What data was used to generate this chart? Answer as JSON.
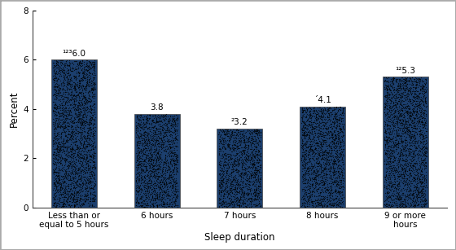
{
  "categories": [
    "Less than or\nequal to 5 hours",
    "6 hours",
    "7 hours",
    "8 hours",
    "9 or more\nhours"
  ],
  "values": [
    6.0,
    3.8,
    3.2,
    4.1,
    5.3
  ],
  "bar_color": "#1c3f6e",
  "dot_color": "#000000",
  "labels": [
    "¹²³6.0",
    "3.8",
    "²3.2",
    "´4.1",
    "¹²5.3"
  ],
  "xlabel": "Sleep duration",
  "ylabel": "Percent",
  "ylim": [
    0,
    8
  ],
  "yticks": [
    0,
    2,
    4,
    6,
    8
  ],
  "label_fontsize": 7.5,
  "axis_fontsize": 8.5,
  "tick_fontsize": 7.5,
  "background_color": "#ffffff",
  "bar_width": 0.55,
  "figsize": [
    5.6,
    3.07
  ],
  "dpi": 100
}
